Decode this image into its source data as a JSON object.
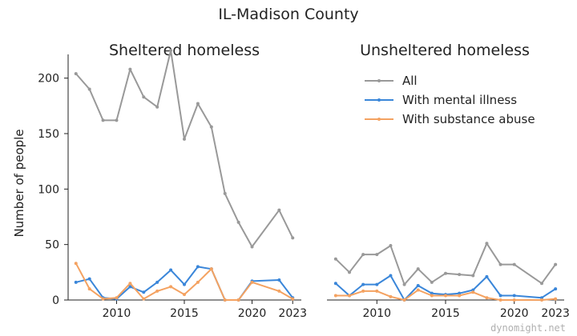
{
  "chart_data": {
    "type": "line",
    "title": "IL-Madison County",
    "ylabel": "Number of people",
    "watermark": "dynomight.net",
    "legend": {
      "placement": "top-right",
      "entries": [
        "All",
        "With mental illness",
        "With substance abuse"
      ]
    },
    "colors": {
      "All": "#999999",
      "With mental illness": "#3a86d9",
      "With substance abuse": "#f4a261"
    },
    "grid": false,
    "ylim": [
      0,
      225
    ],
    "xlim": [
      2006.6,
      2023.4
    ],
    "x": [
      2007,
      2008,
      2009,
      2010,
      2011,
      2012,
      2013,
      2014,
      2015,
      2016,
      2017,
      2018,
      2019,
      2020,
      2021,
      2022,
      2023
    ],
    "x_ticks": [
      2010,
      2015,
      2020,
      2023
    ],
    "y_ticks": [
      0,
      50,
      100,
      150,
      200
    ],
    "panels": [
      {
        "subtitle": "Sheltered homeless",
        "series": [
          {
            "name": "All",
            "values": [
              204,
              190,
              162,
              162,
              208,
              183,
              174,
              225,
              145,
              177,
              156,
              96,
              70,
              48,
              null,
              81,
              56
            ]
          },
          {
            "name": "With mental illness",
            "values": [
              16,
              19,
              2,
              1,
              12,
              7,
              16,
              27,
              14,
              30,
              28,
              0,
              0,
              17,
              null,
              18,
              2
            ]
          },
          {
            "name": "With substance abuse",
            "values": [
              33,
              10,
              1,
              2,
              15,
              1,
              8,
              12,
              5,
              16,
              28,
              0,
              0,
              16,
              null,
              8,
              1
            ]
          }
        ]
      },
      {
        "subtitle": "Unsheltered homeless",
        "series": [
          {
            "name": "All",
            "values": [
              37,
              25,
              41,
              41,
              49,
              14,
              28,
              16,
              24,
              23,
              22,
              51,
              32,
              32,
              null,
              15,
              32
            ]
          },
          {
            "name": "With mental illness",
            "values": [
              15,
              4,
              14,
              14,
              22,
              0,
              13,
              6,
              5,
              6,
              9,
              21,
              4,
              4,
              null,
              2,
              10
            ]
          },
          {
            "name": "With substance abuse",
            "values": [
              4,
              4,
              8,
              8,
              3,
              0,
              9,
              4,
              4,
              4,
              7,
              2,
              0,
              0,
              null,
              0,
              1
            ]
          }
        ]
      }
    ]
  }
}
